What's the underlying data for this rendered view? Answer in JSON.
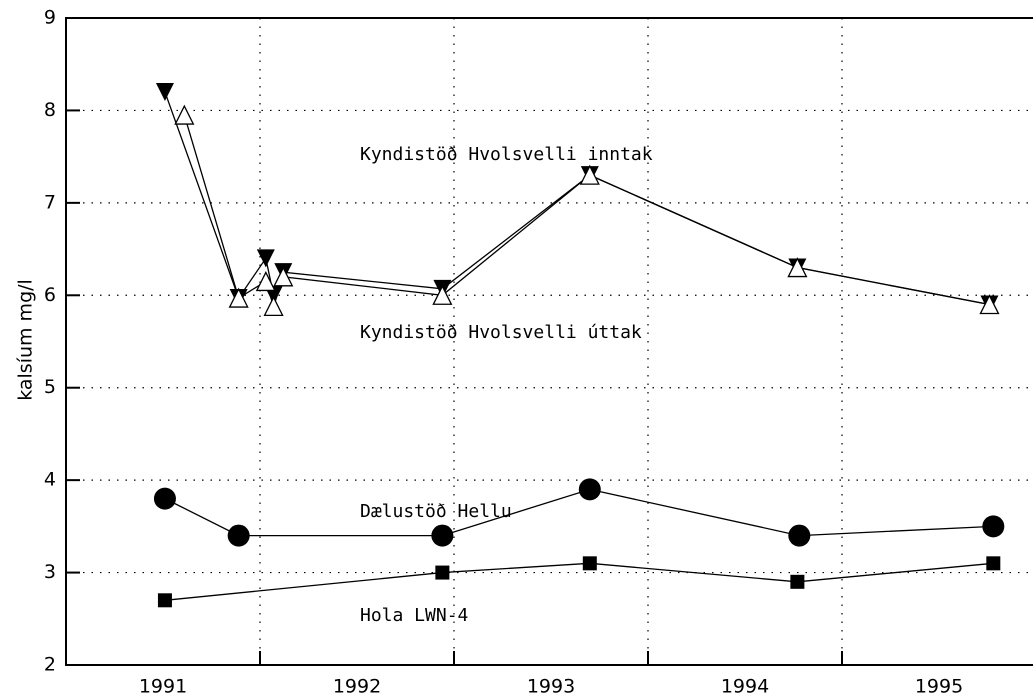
{
  "chart_data": {
    "type": "line",
    "y_label": "kalsíum mg/l",
    "xlim": [
      1991,
      1996
    ],
    "ylim": [
      2,
      9
    ],
    "xticks": [
      {
        "value": 1991.5,
        "label": "1991"
      },
      {
        "value": 1992.5,
        "label": "1992"
      },
      {
        "value": 1993.5,
        "label": "1993"
      },
      {
        "value": 1994.5,
        "label": "1994"
      },
      {
        "value": 1995.5,
        "label": "1995"
      }
    ],
    "xgrid": [
      1992,
      1993,
      1994,
      1995
    ],
    "yticks": [
      2,
      3,
      4,
      5,
      6,
      7,
      8,
      9
    ],
    "grid": true,
    "series": [
      {
        "name": "Kyndistöð Hvolsvelli inntak",
        "color": "#000000",
        "marker": "triangle-down-filled",
        "x": [
          1991.51,
          1991.89,
          1992.03,
          1992.07,
          1992.12,
          1992.94,
          1993.7,
          1994.77,
          1995.76
        ],
        "values": [
          8.2,
          5.97,
          6.4,
          6.0,
          6.25,
          6.07,
          7.3,
          6.3,
          5.9
        ]
      },
      {
        "name": "Kyndistöð Hvolsvelli úttak",
        "color": "#000000",
        "marker": "triangle-up-open",
        "x": [
          1991.61,
          1991.89,
          1992.03,
          1992.07,
          1992.12,
          1992.94,
          1993.7,
          1994.77,
          1995.76
        ],
        "values": [
          7.95,
          5.97,
          6.15,
          5.88,
          6.2,
          6.0,
          7.3,
          6.3,
          5.9
        ]
      },
      {
        "name": "Dælustöð Hellu",
        "color": "#000000",
        "marker": "circle-filled",
        "x": [
          1991.51,
          1991.89,
          1992.94,
          1993.7,
          1994.78,
          1995.78
        ],
        "values": [
          3.8,
          3.4,
          3.4,
          3.9,
          3.4,
          3.5
        ]
      },
      {
        "name": "Hola LWN-4",
        "color": "#000000",
        "marker": "square-filled",
        "x": [
          1991.51,
          1992.94,
          1993.7,
          1994.77,
          1995.78
        ],
        "values": [
          2.7,
          3.0,
          3.1,
          2.9,
          3.1
        ]
      }
    ]
  }
}
